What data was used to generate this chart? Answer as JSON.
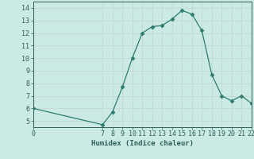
{
  "x": [
    0,
    7,
    8,
    9,
    10,
    11,
    12,
    13,
    14,
    15,
    16,
    17,
    18,
    19,
    20,
    21,
    22
  ],
  "y": [
    6.0,
    4.7,
    5.7,
    7.7,
    10.0,
    12.0,
    12.5,
    12.6,
    13.1,
    13.8,
    13.5,
    12.2,
    8.7,
    7.0,
    6.6,
    7.0,
    6.4
  ],
  "title": "",
  "xlabel": "Humidex (Indice chaleur)",
  "xlim": [
    0,
    22
  ],
  "ylim": [
    4.5,
    14.5
  ],
  "yticks": [
    5,
    6,
    7,
    8,
    9,
    10,
    11,
    12,
    13,
    14
  ],
  "xticks": [
    0,
    7,
    8,
    9,
    10,
    11,
    12,
    13,
    14,
    15,
    16,
    17,
    18,
    19,
    20,
    21,
    22
  ],
  "line_color": "#2d7d6f",
  "marker": "D",
  "marker_size": 2.5,
  "bg_color": "#cceae4",
  "grid_color": "#c2d8d3",
  "font_color": "#2d5f56",
  "xlabel_fontsize": 6.5,
  "tick_fontsize": 6.0,
  "linewidth": 0.9
}
